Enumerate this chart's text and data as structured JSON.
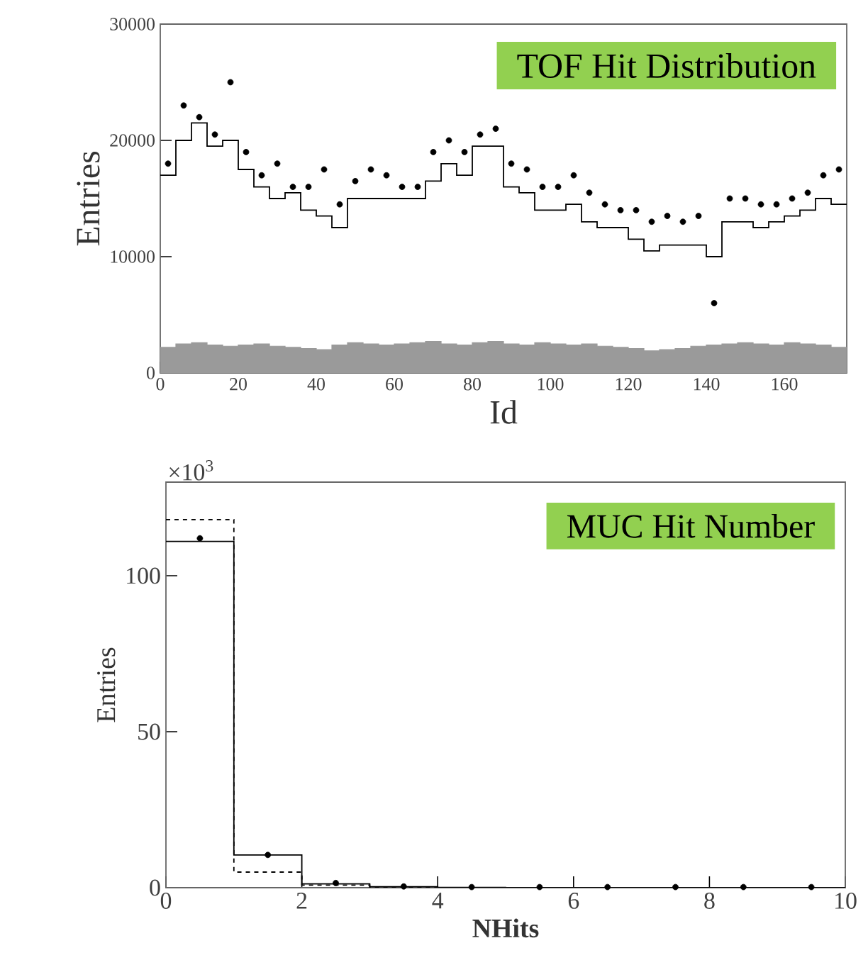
{
  "chart_data": [
    {
      "type": "step",
      "title": "TOF Hit Distribution",
      "xlabel": "Id",
      "ylabel": "Entries",
      "x": [
        0,
        4,
        8,
        12,
        16,
        20,
        24,
        28,
        32,
        36,
        40,
        44,
        48,
        52,
        56,
        60,
        64,
        68,
        72,
        76,
        80,
        84,
        88,
        92,
        96,
        100,
        104,
        108,
        112,
        116,
        120,
        124,
        128,
        132,
        136,
        140,
        144,
        148,
        152,
        156,
        160,
        164,
        168,
        172,
        176
      ],
      "xlim": [
        0,
        176
      ],
      "xticks": [
        0,
        20,
        40,
        60,
        80,
        100,
        120,
        140,
        160
      ],
      "ylim": [
        0,
        30000
      ],
      "yticks": [
        0,
        10000,
        20000,
        30000
      ],
      "series": [
        {
          "color": "#000000",
          "values": [
            17000,
            20000,
            21500,
            19500,
            20000,
            17500,
            16000,
            15000,
            15500,
            14000,
            13500,
            12500,
            15000,
            15000,
            15000,
            15000,
            15000,
            16500,
            18000,
            17000,
            19500,
            19500,
            16000,
            15500,
            14000,
            14000,
            14500,
            13000,
            12500,
            12500,
            11500,
            10500,
            11000,
            11000,
            11000,
            10000,
            13000,
            13000,
            12500,
            13000,
            13500,
            14000,
            15000,
            14500,
            14500
          ]
        },
        {
          "type": "scatter",
          "color": "#000000",
          "marker": "circle",
          "x": [
            2,
            6,
            10,
            14,
            18,
            22,
            26,
            30,
            34,
            38,
            42,
            46,
            50,
            54,
            58,
            62,
            66,
            70,
            74,
            78,
            82,
            86,
            90,
            94,
            98,
            102,
            106,
            110,
            114,
            118,
            122,
            126,
            130,
            134,
            138,
            142,
            146,
            150,
            154,
            158,
            162,
            166,
            170,
            174
          ],
          "values": [
            18000,
            23000,
            22000,
            20500,
            25000,
            19000,
            17000,
            18000,
            16000,
            16000,
            17500,
            14500,
            16500,
            17500,
            17000,
            16000,
            16000,
            19000,
            20000,
            19000,
            20500,
            21000,
            18000,
            17500,
            16000,
            16000,
            17000,
            15500,
            14500,
            14000,
            14000,
            13000,
            13500,
            13000,
            13500,
            6000,
            15000,
            15000,
            14500,
            14500,
            15000,
            15500,
            17000,
            17500
          ]
        },
        {
          "type": "area",
          "color": "#9a9a9a",
          "values": [
            2200,
            2500,
            2600,
            2400,
            2300,
            2400,
            2500,
            2300,
            2200,
            2100,
            2000,
            2400,
            2600,
            2500,
            2400,
            2500,
            2600,
            2700,
            2500,
            2400,
            2600,
            2700,
            2500,
            2400,
            2600,
            2500,
            2400,
            2500,
            2300,
            2200,
            2100,
            1900,
            2000,
            2100,
            2300,
            2400,
            2500,
            2600,
            2500,
            2400,
            2600,
            2500,
            2400,
            2200,
            2200
          ]
        }
      ]
    },
    {
      "type": "step",
      "title": "MUC Hit Number",
      "xlabel": "NHits",
      "ylabel": "Entries",
      "annotations": [
        "×10$^{3}$"
      ],
      "x": [
        0,
        1,
        2,
        3,
        4,
        5,
        6,
        7,
        8,
        9,
        10
      ],
      "xlim": [
        0,
        10
      ],
      "xticks": [
        0,
        2,
        4,
        6,
        8,
        10
      ],
      "ylim": [
        0,
        130
      ],
      "yticks": [
        0,
        50,
        100
      ],
      "series": [
        {
          "color": "#000000",
          "values": [
            111,
            10.5,
            1.2,
            0.3,
            0.1,
            0,
            0,
            0,
            0,
            0,
            0
          ]
        },
        {
          "color": "#000000",
          "line_style": "dashed",
          "values": [
            118,
            5,
            0.8,
            0.2,
            0,
            0,
            0,
            0,
            0,
            0,
            0
          ]
        },
        {
          "type": "scatter",
          "color": "#000000",
          "marker": "circle",
          "x": [
            0.5,
            1.5,
            2.5,
            3.5,
            4.5,
            5.5,
            6.5,
            7.5,
            8.5,
            9.5
          ],
          "values": [
            112,
            10.5,
            1.5,
            0.4,
            0.2,
            0.2,
            0.2,
            0.2,
            0.2,
            0.2
          ]
        }
      ]
    }
  ]
}
